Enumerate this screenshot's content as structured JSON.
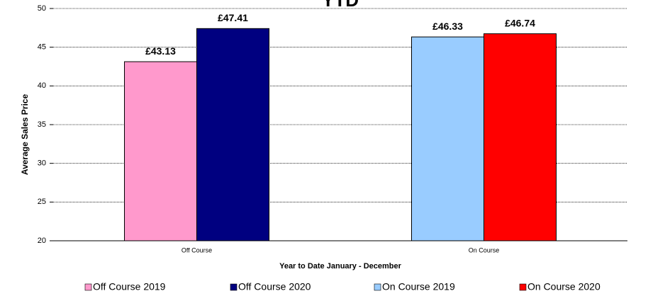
{
  "chart_data": {
    "type": "bar",
    "title": "YTD",
    "x_label": "Year to Date January - December",
    "y_label": "Average Sales Price",
    "categories": [
      "Off Course",
      "On Course"
    ],
    "series": [
      {
        "name": "Off Course 2019",
        "color": "#ff99cc",
        "values": [
          43.13,
          null
        ],
        "value_labels": [
          "£43.13",
          null
        ]
      },
      {
        "name": "Off Course 2020",
        "color": "#000080",
        "values": [
          47.41,
          null
        ],
        "value_labels": [
          "£47.41",
          null
        ]
      },
      {
        "name": "On Course 2019",
        "color": "#99ccff",
        "values": [
          null,
          46.33
        ],
        "value_labels": [
          null,
          "£46.33"
        ]
      },
      {
        "name": "On Course 2020",
        "color": "#ff0000",
        "values": [
          null,
          46.74
        ],
        "value_labels": [
          null,
          "£46.74"
        ]
      }
    ],
    "ylim": [
      20,
      50
    ],
    "yticks": [
      20,
      25,
      30,
      35,
      40,
      45,
      50
    ],
    "grid": true,
    "legend": "bottom"
  }
}
